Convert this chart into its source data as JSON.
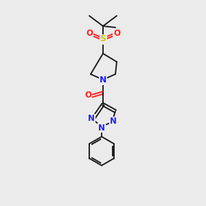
{
  "bg_color": "#ebebeb",
  "bond_color": "#1a1a1a",
  "N_color": "#2020ff",
  "O_color": "#ff2020",
  "S_color": "#cccc00",
  "bond_width": 1.4,
  "figsize": [
    3.0,
    3.0
  ],
  "dpi": 100,
  "xlim": [
    0,
    300
  ],
  "ylim": [
    0,
    300
  ]
}
